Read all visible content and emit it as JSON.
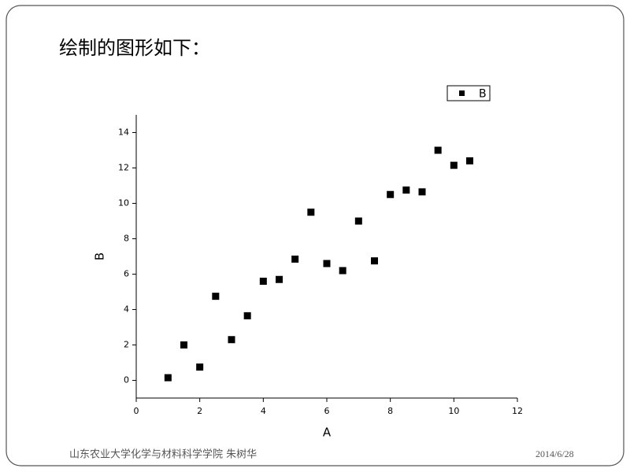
{
  "slide": {
    "heading": "绘制的图形如下：",
    "footer": "山东农业大学化学与材料科学学院 朱树华",
    "date": "2014/6/28"
  },
  "chart_data": {
    "type": "scatter",
    "xlabel": "A",
    "ylabel": "B",
    "x": [
      1,
      1.5,
      2,
      2.5,
      3,
      3.5,
      4,
      4.5,
      5,
      5.5,
      6,
      6.5,
      7,
      7.5,
      8,
      8.5,
      9,
      9.5,
      10,
      10.5
    ],
    "series": [
      {
        "name": "B",
        "color": "#000000",
        "values": [
          0.15,
          2.0,
          0.75,
          4.75,
          2.3,
          3.65,
          5.6,
          5.7,
          6.85,
          9.5,
          6.6,
          6.2,
          9.0,
          6.75,
          10.5,
          10.75,
          10.65,
          13.0,
          12.15,
          12.4
        ]
      }
    ],
    "xlim": [
      0,
      12
    ],
    "xticks": [
      0,
      2,
      4,
      6,
      8,
      10,
      12
    ],
    "ylim": [
      -1,
      15
    ],
    "yticks": [
      0,
      2,
      4,
      6,
      8,
      10,
      12,
      14
    ],
    "legend": "top-right"
  }
}
